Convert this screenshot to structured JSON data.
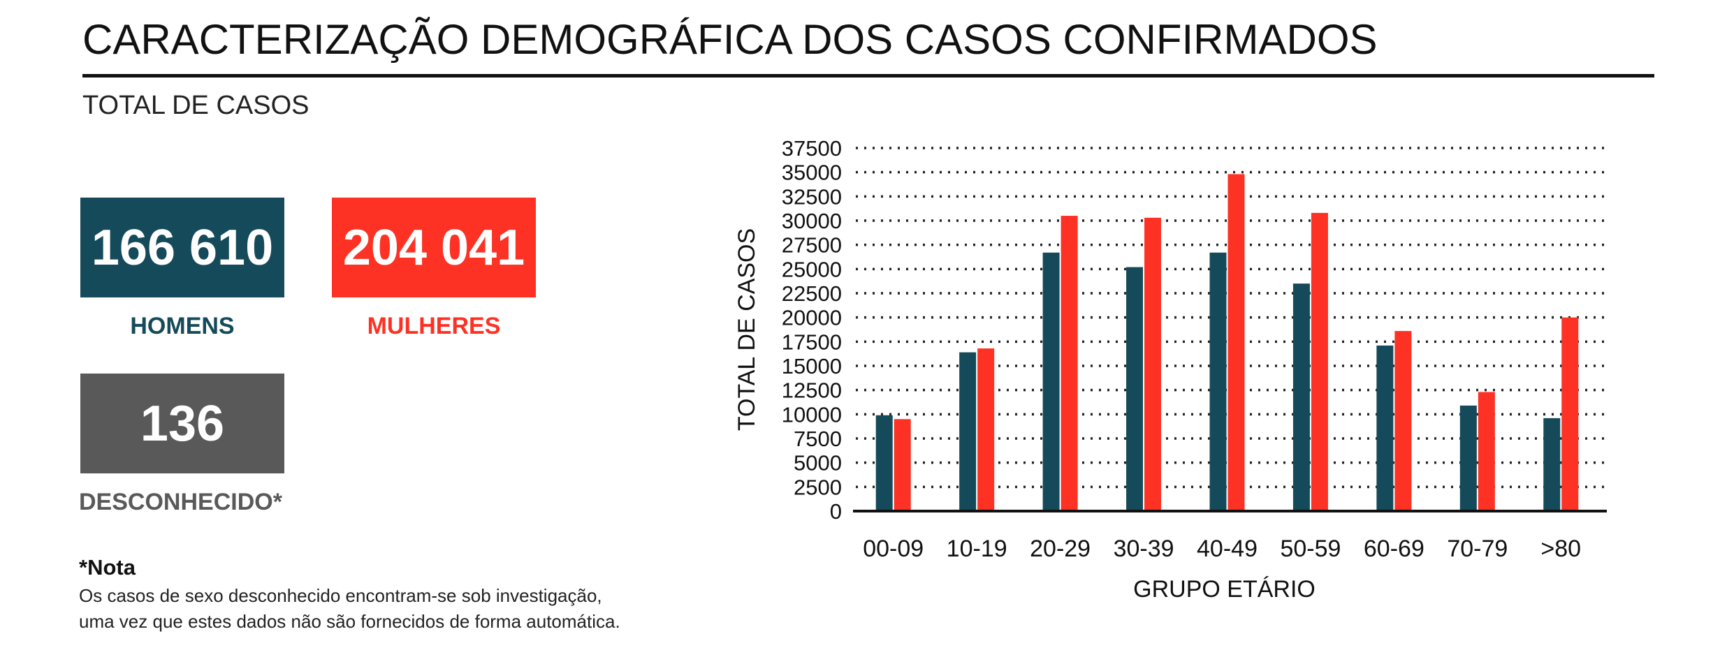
{
  "header": {
    "title": "CARACTERIZAÇÃO DEMOGRÁFICA DOS CASOS CONFIRMADOS",
    "subtitle": "TOTAL DE CASOS"
  },
  "totals": {
    "men": {
      "value": "166 610",
      "label": "HOMENS"
    },
    "women": {
      "value": "204 041",
      "label": "MULHERES"
    },
    "unknown": {
      "value": "136",
      "label": "DESCONHECIDO*"
    }
  },
  "note": {
    "title": "*Nota",
    "line1": "Os casos de sexo desconhecido encontram-se sob investigação,",
    "line2": "uma vez que estes dados não são fornecidos de forma automática."
  },
  "colors": {
    "men": "#154a5a",
    "women": "#fd3224",
    "unknown": "#595959"
  },
  "chart_data": {
    "type": "bar",
    "title": "",
    "xlabel": "GRUPO ETÁRIO",
    "ylabel": "TOTAL DE CASOS",
    "ylim": [
      0,
      37500
    ],
    "yticks": [
      0,
      2500,
      5000,
      7500,
      10000,
      12500,
      15000,
      17500,
      20000,
      22500,
      25000,
      27500,
      30000,
      32500,
      35000,
      37500
    ],
    "grid": "horizontal-dotted",
    "categories": [
      "00-09",
      "10-19",
      "20-29",
      "30-39",
      "40-49",
      "50-59",
      "60-69",
      "70-79",
      ">80"
    ],
    "series": [
      {
        "color": "#154a5a",
        "values": [
          9900,
          16400,
          26700,
          25200,
          26700,
          23500,
          17100,
          10900,
          9600
        ]
      },
      {
        "color": "#fd3224",
        "values": [
          9500,
          16800,
          30500,
          30300,
          34800,
          30800,
          18600,
          12300,
          20000
        ]
      }
    ]
  }
}
